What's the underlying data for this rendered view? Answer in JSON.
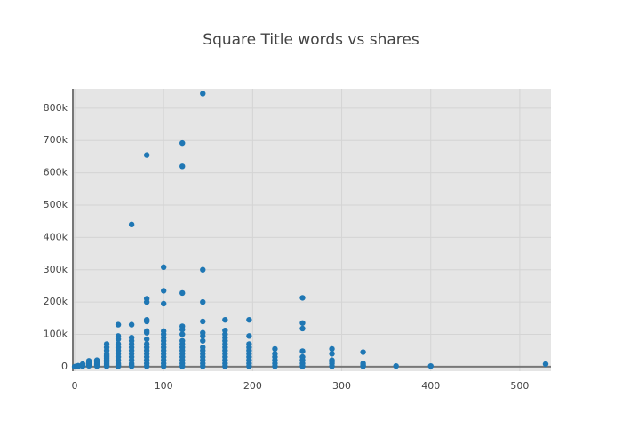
{
  "chart_data": {
    "type": "scatter",
    "title": "Square Title words vs shares",
    "color": "#1f77b4",
    "grid": true,
    "xlim": [
      -2,
      535
    ],
    "ylim": [
      -14000,
      860000
    ],
    "xticks": [
      0,
      100,
      200,
      300,
      400,
      500
    ],
    "yticks": [
      0,
      {
        "value": 100000,
        "label": "100k"
      },
      {
        "value": 200000,
        "label": "200k"
      },
      {
        "value": 300000,
        "label": "300k"
      },
      {
        "value": 400000,
        "label": "400k"
      },
      {
        "value": 500000,
        "label": "500k"
      },
      {
        "value": 600000,
        "label": "600k"
      },
      {
        "value": 700000,
        "label": "700k"
      },
      {
        "value": 800000,
        "label": "800k"
      }
    ],
    "x": [
      0,
      1,
      4,
      4,
      9,
      9,
      9,
      16,
      16,
      16,
      16,
      25,
      25,
      25,
      25,
      25,
      36,
      36,
      36,
      36,
      36,
      36,
      36,
      36,
      36,
      36,
      36,
      36,
      49,
      49,
      49,
      49,
      49,
      49,
      49,
      49,
      49,
      49,
      49,
      49,
      64,
      64,
      64,
      64,
      64,
      64,
      64,
      64,
      64,
      64,
      64,
      64,
      64,
      81,
      81,
      81,
      81,
      81,
      81,
      81,
      81,
      81,
      81,
      81,
      81,
      81,
      81,
      81,
      81,
      100,
      100,
      100,
      100,
      100,
      100,
      100,
      100,
      100,
      100,
      100,
      100,
      100,
      100,
      100,
      121,
      121,
      121,
      121,
      121,
      121,
      121,
      121,
      121,
      121,
      121,
      121,
      121,
      121,
      121,
      144,
      144,
      144,
      144,
      144,
      144,
      144,
      144,
      144,
      144,
      144,
      144,
      144,
      144,
      169,
      169,
      169,
      169,
      169,
      169,
      169,
      169,
      169,
      169,
      169,
      169,
      169,
      196,
      196,
      196,
      196,
      196,
      196,
      196,
      196,
      196,
      196,
      225,
      225,
      225,
      225,
      225,
      225,
      256,
      256,
      256,
      256,
      256,
      256,
      256,
      256,
      289,
      289,
      289,
      289,
      289,
      289,
      324,
      324,
      324,
      324,
      361,
      400,
      529
    ],
    "values": [
      0,
      500,
      1000,
      3000,
      2000,
      5000,
      8000,
      3000,
      8000,
      12000,
      18000,
      2000,
      6000,
      10000,
      15000,
      20000,
      1000,
      5000,
      10000,
      15000,
      20000,
      25000,
      30000,
      35000,
      40000,
      50000,
      60000,
      70000,
      1000,
      5000,
      10000,
      20000,
      30000,
      40000,
      50000,
      60000,
      70000,
      85000,
      95000,
      130000,
      1000,
      5000,
      10000,
      20000,
      30000,
      40000,
      50000,
      60000,
      70000,
      80000,
      90000,
      130000,
      440000,
      1000,
      10000,
      20000,
      30000,
      40000,
      50000,
      60000,
      70000,
      85000,
      105000,
      110000,
      140000,
      145000,
      200000,
      210000,
      655000,
      1000,
      10000,
      20000,
      30000,
      40000,
      50000,
      60000,
      70000,
      80000,
      90000,
      100000,
      110000,
      195000,
      235000,
      308000,
      1000,
      10000,
      20000,
      30000,
      40000,
      50000,
      60000,
      70000,
      80000,
      100000,
      115000,
      125000,
      228000,
      620000,
      692000,
      1000,
      10000,
      20000,
      30000,
      40000,
      50000,
      60000,
      80000,
      95000,
      105000,
      140000,
      200000,
      300000,
      845000,
      1000,
      10000,
      20000,
      30000,
      40000,
      50000,
      60000,
      70000,
      80000,
      90000,
      100000,
      112000,
      145000,
      1000,
      10000,
      20000,
      30000,
      40000,
      50000,
      60000,
      70000,
      95000,
      145000,
      1000,
      10000,
      20000,
      30000,
      40000,
      55000,
      1000,
      10000,
      20000,
      30000,
      48000,
      118000,
      135000,
      213000,
      1000,
      10000,
      15000,
      20000,
      40000,
      55000,
      1000,
      5000,
      10000,
      45000,
      2000,
      2000,
      8000
    ]
  }
}
